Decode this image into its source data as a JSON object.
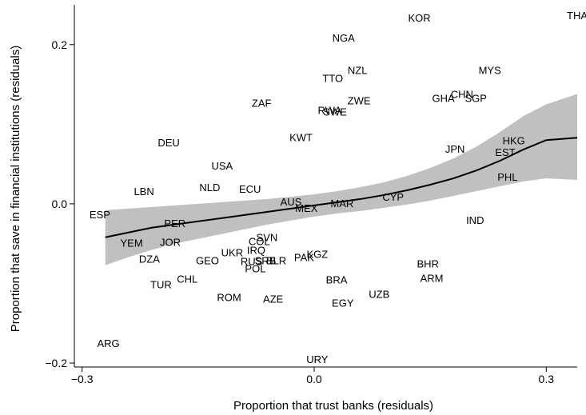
{
  "chart_data": {
    "type": "scatter",
    "title": "",
    "xlabel": "Proportion that trust banks (residuals)",
    "ylabel": "Proportion that save in financial institutions (residuals)",
    "xlim": [
      -0.31,
      0.34
    ],
    "ylim": [
      -0.205,
      0.25
    ],
    "xticks": [
      {
        "value": -0.3,
        "label": "−0.3"
      },
      {
        "value": 0.0,
        "label": "0.0"
      },
      {
        "value": 0.3,
        "label": "0.3"
      }
    ],
    "yticks": [
      {
        "value": -0.2,
        "label": "−0.2"
      },
      {
        "value": 0.0,
        "label": "0.0"
      },
      {
        "value": 0.2,
        "label": "0.2"
      }
    ],
    "grid": false,
    "colors": {
      "fit_line": "#000000",
      "confidence_band": "#c0c0c0",
      "text": "#000000"
    },
    "points": [
      {
        "label": "KOR",
        "x": 0.136,
        "y": 0.234
      },
      {
        "label": "THA",
        "x": 0.34,
        "y": 0.237
      },
      {
        "label": "NGA",
        "x": 0.038,
        "y": 0.209
      },
      {
        "label": "NZL",
        "x": 0.056,
        "y": 0.168
      },
      {
        "label": "MYS",
        "x": 0.227,
        "y": 0.168
      },
      {
        "label": "TTO",
        "x": 0.024,
        "y": 0.158
      },
      {
        "label": "CHN",
        "x": 0.191,
        "y": 0.138
      },
      {
        "label": "GHA",
        "x": 0.167,
        "y": 0.133
      },
      {
        "label": "SGP",
        "x": 0.209,
        "y": 0.133
      },
      {
        "label": "ZWE",
        "x": 0.058,
        "y": 0.13
      },
      {
        "label": "ZAF",
        "x": -0.068,
        "y": 0.127
      },
      {
        "label": "RWA",
        "x": 0.02,
        "y": 0.118
      },
      {
        "label": "SWE",
        "x": 0.027,
        "y": 0.116
      },
      {
        "label": "KWT",
        "x": -0.017,
        "y": 0.084
      },
      {
        "label": "HKG",
        "x": 0.258,
        "y": 0.08
      },
      {
        "label": "DEU",
        "x": -0.188,
        "y": 0.077
      },
      {
        "label": "JPN",
        "x": 0.182,
        "y": 0.069
      },
      {
        "label": "EST",
        "x": 0.247,
        "y": 0.065
      },
      {
        "label": "USA",
        "x": -0.119,
        "y": 0.048
      },
      {
        "label": "PHL",
        "x": 0.25,
        "y": 0.034
      },
      {
        "label": "NLD",
        "x": -0.135,
        "y": 0.021
      },
      {
        "label": "ECU",
        "x": -0.083,
        "y": 0.019
      },
      {
        "label": "LBN",
        "x": -0.22,
        "y": 0.016
      },
      {
        "label": "CYP",
        "x": 0.102,
        "y": 0.009
      },
      {
        "label": "AUS",
        "x": -0.03,
        "y": 0.003
      },
      {
        "label": "MAR",
        "x": 0.036,
        "y": 0.001
      },
      {
        "label": "MEX",
        "x": -0.01,
        "y": -0.005
      },
      {
        "label": "ESP",
        "x": -0.277,
        "y": -0.013
      },
      {
        "label": "IND",
        "x": 0.208,
        "y": -0.02
      },
      {
        "label": "PER",
        "x": -0.18,
        "y": -0.024
      },
      {
        "label": "SVN",
        "x": -0.061,
        "y": -0.042
      },
      {
        "label": "YEM",
        "x": -0.236,
        "y": -0.049
      },
      {
        "label": "JOR",
        "x": -0.186,
        "y": -0.048
      },
      {
        "label": "COL",
        "x": -0.071,
        "y": -0.047
      },
      {
        "label": "IRQ",
        "x": -0.075,
        "y": -0.058
      },
      {
        "label": "UKR",
        "x": -0.106,
        "y": -0.061
      },
      {
        "label": "KGZ",
        "x": 0.004,
        "y": -0.063
      },
      {
        "label": "PAK",
        "x": -0.013,
        "y": -0.067
      },
      {
        "label": "DZA",
        "x": -0.213,
        "y": -0.069
      },
      {
        "label": "GEO",
        "x": -0.138,
        "y": -0.071
      },
      {
        "label": "RUS",
        "x": -0.081,
        "y": -0.072
      },
      {
        "label": "SRB",
        "x": -0.063,
        "y": -0.071
      },
      {
        "label": "BLR",
        "x": -0.049,
        "y": -0.071
      },
      {
        "label": "POL",
        "x": -0.076,
        "y": -0.081
      },
      {
        "label": "BHR",
        "x": 0.147,
        "y": -0.075
      },
      {
        "label": "CHL",
        "x": -0.164,
        "y": -0.094
      },
      {
        "label": "ARM",
        "x": 0.152,
        "y": -0.093
      },
      {
        "label": "BRA",
        "x": 0.029,
        "y": -0.095
      },
      {
        "label": "TUR",
        "x": -0.198,
        "y": -0.101
      },
      {
        "label": "UZB",
        "x": 0.084,
        "y": -0.113
      },
      {
        "label": "ROM",
        "x": -0.11,
        "y": -0.117
      },
      {
        "label": "AZE",
        "x": -0.053,
        "y": -0.119
      },
      {
        "label": "EGY",
        "x": 0.037,
        "y": -0.124
      },
      {
        "label": "ARG",
        "x": -0.266,
        "y": -0.175
      },
      {
        "label": "URY",
        "x": 0.004,
        "y": -0.195
      }
    ],
    "fit_line": {
      "x": [
        -0.27,
        -0.24,
        -0.21,
        -0.18,
        -0.15,
        -0.12,
        -0.09,
        -0.06,
        -0.03,
        0.0,
        0.03,
        0.06,
        0.09,
        0.12,
        0.15,
        0.18,
        0.21,
        0.24,
        0.27,
        0.3,
        0.34
      ],
      "y": [
        -0.042,
        -0.036,
        -0.03,
        -0.026,
        -0.022,
        -0.018,
        -0.014,
        -0.01,
        -0.006,
        -0.002,
        0.002,
        0.006,
        0.011,
        0.017,
        0.024,
        0.032,
        0.042,
        0.054,
        0.068,
        0.08,
        0.083
      ]
    },
    "confidence_band": {
      "x": [
        -0.27,
        -0.24,
        -0.21,
        -0.18,
        -0.15,
        -0.12,
        -0.09,
        -0.06,
        -0.03,
        0.0,
        0.03,
        0.06,
        0.09,
        0.12,
        0.15,
        0.18,
        0.21,
        0.24,
        0.27,
        0.3,
        0.34
      ],
      "upper": [
        -0.008,
        -0.006,
        -0.004,
        -0.002,
        0.0,
        0.002,
        0.004,
        0.006,
        0.009,
        0.012,
        0.016,
        0.021,
        0.027,
        0.035,
        0.045,
        0.057,
        0.072,
        0.09,
        0.11,
        0.125,
        0.138
      ],
      "lower": [
        -0.077,
        -0.067,
        -0.058,
        -0.05,
        -0.044,
        -0.038,
        -0.032,
        -0.026,
        -0.021,
        -0.016,
        -0.012,
        -0.009,
        -0.005,
        -0.001,
        0.004,
        0.01,
        0.016,
        0.022,
        0.028,
        0.032,
        0.03
      ]
    }
  }
}
